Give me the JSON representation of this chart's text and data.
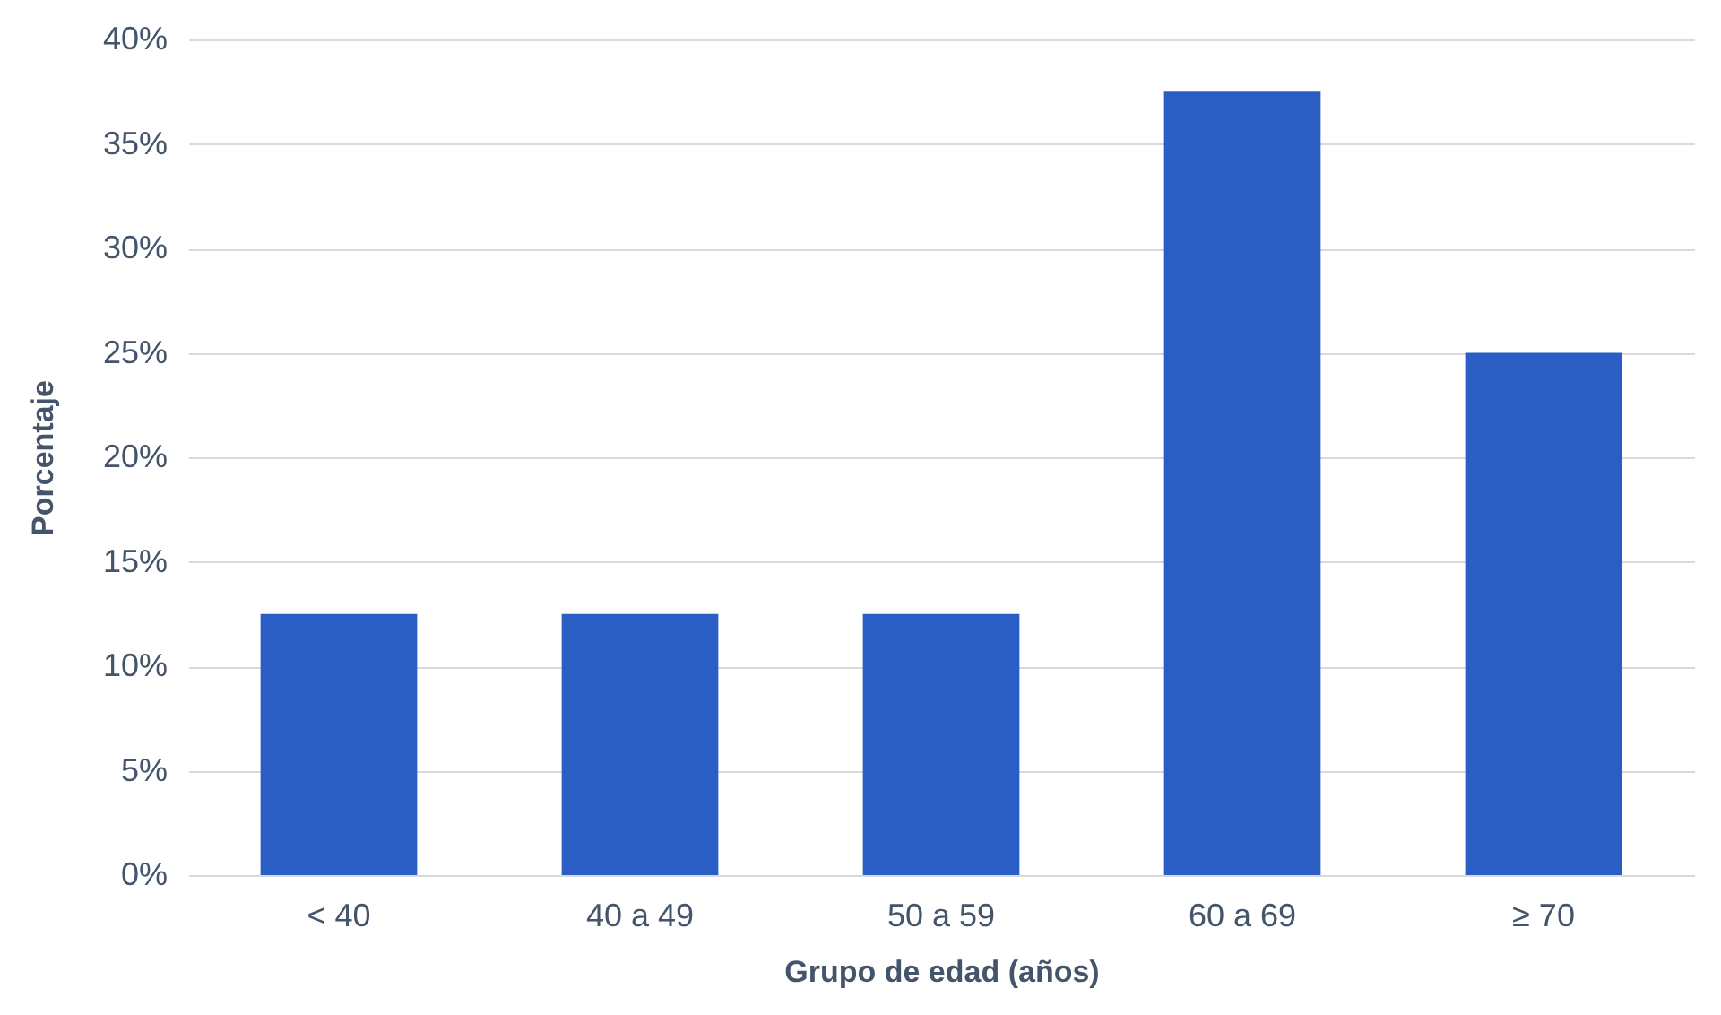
{
  "chart_data": {
    "type": "bar",
    "xlabel": "Grupo de edad (años)",
    "ylabel": "Porcentaje",
    "categories": [
      "< 40",
      "40 a 49",
      "50 a 59",
      "60 a 69",
      "≥ 70"
    ],
    "values": [
      12.5,
      12.5,
      12.5,
      37.5,
      25
    ],
    "color": "#2a5ec4",
    "ylim": [
      0,
      40
    ],
    "yticks": [
      {
        "value": 0,
        "label": "0%"
      },
      {
        "value": 5,
        "label": "5%"
      },
      {
        "value": 10,
        "label": "10%"
      },
      {
        "value": 15,
        "label": "15%"
      },
      {
        "value": 20,
        "label": "20%"
      },
      {
        "value": 25,
        "label": "25%"
      },
      {
        "value": 30,
        "label": "30%"
      },
      {
        "value": 35,
        "label": "35%"
      },
      {
        "value": 40,
        "label": "40%"
      }
    ],
    "grid": "y"
  }
}
